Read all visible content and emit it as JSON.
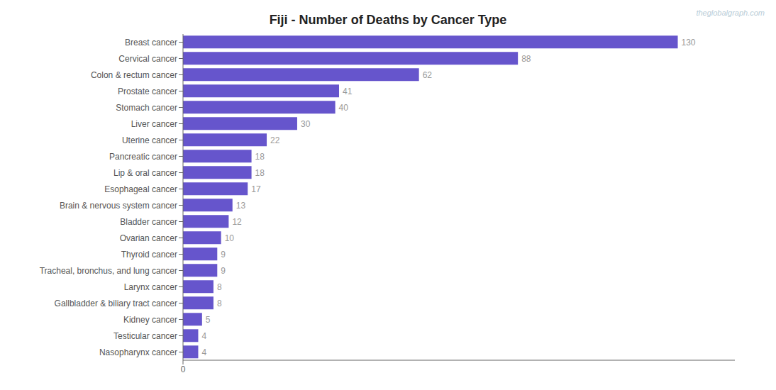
{
  "chart_data": {
    "type": "bar",
    "orientation": "horizontal",
    "title": "Fiji - Number of Deaths by Cancer Type",
    "annotations": [
      "theglobalgraph.com"
    ],
    "categories": [
      "Breast cancer",
      "Cervical cancer",
      "Colon & rectum cancer",
      "Prostate cancer",
      "Stomach cancer",
      "Liver cancer",
      "Uterine cancer",
      "Pancreatic cancer",
      "Lip & oral cancer",
      "Esophageal cancer",
      "Brain & nervous system cancer",
      "Bladder cancer",
      "Ovarian cancer",
      "Thyroid cancer",
      "Tracheal, bronchus, and lung cancer",
      "Larynx cancer",
      "Gallbladder & biliary tract cancer",
      "Kidney cancer",
      "Testicular cancer",
      "Nasopharynx cancer"
    ],
    "values": [
      130,
      88,
      62,
      41,
      40,
      30,
      22,
      18,
      18,
      17,
      13,
      12,
      10,
      9,
      9,
      8,
      8,
      5,
      4,
      4
    ],
    "color": "#6655cc",
    "xlim": [
      0,
      145
    ],
    "xticks": [
      0
    ],
    "data_labels": true,
    "grid": false
  }
}
